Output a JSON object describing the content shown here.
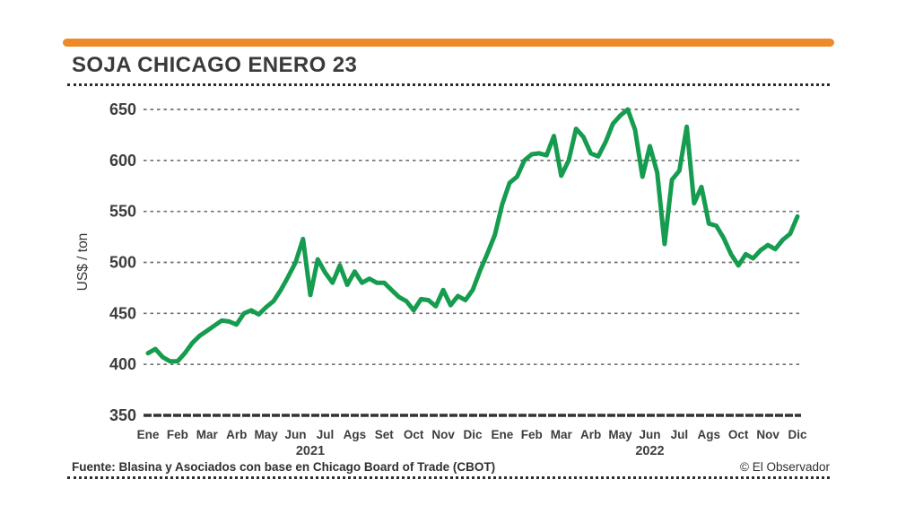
{
  "page": {
    "title": "SOJA CHICAGO ENERO 23",
    "accent_bar_color": "#ef8a2a"
  },
  "footer": {
    "source": "Fuente: Blasina y Asociados con base en Chicago Board of Trade (CBOT)",
    "credit": "© El Observador"
  },
  "chart_data": {
    "type": "line",
    "title": "SOJA CHICAGO ENERO 23",
    "xlabel": "",
    "ylabel": "US$ / ton",
    "ylim": [
      350,
      650
    ],
    "y_ticks": [
      350,
      400,
      450,
      500,
      550,
      600,
      650
    ],
    "grid": "dashed horizontal",
    "legend": "none",
    "line_color": "#169c4f",
    "grid_color": "#6f6f6f",
    "axis_color": "#333333",
    "text_color": "#3d3d3d",
    "x_labels": [
      "Ene",
      "Feb",
      "Mar",
      "Arb",
      "May",
      "Jun",
      "Jul",
      "Ags",
      "Set",
      "Oct",
      "Nov",
      "Dic",
      "Ene",
      "Feb",
      "Mar",
      "Arb",
      "May",
      "Jun",
      "Jul",
      "Ags",
      "Oct",
      "Nov",
      "Dic"
    ],
    "year_labels": [
      {
        "text": "2021",
        "from_label": 0,
        "to_label": 11
      },
      {
        "text": "2022",
        "from_label": 12,
        "to_label": 22
      }
    ],
    "points_per_label_slot": 4,
    "values": [
      411,
      415,
      407,
      403,
      403,
      411,
      421,
      428,
      433,
      438,
      443,
      442,
      439,
      450,
      453,
      449,
      456,
      462,
      473,
      486,
      500,
      523,
      468,
      503,
      490,
      480,
      497,
      478,
      491,
      480,
      484,
      480,
      480,
      473,
      466,
      462,
      453,
      464,
      463,
      457,
      473,
      458,
      467,
      463,
      473,
      492,
      509,
      527,
      557,
      578,
      584,
      600,
      606,
      607,
      605,
      624,
      585,
      600,
      631,
      623,
      607,
      604,
      618,
      636,
      644,
      650,
      630,
      584,
      614,
      588,
      518,
      581,
      590,
      633,
      558,
      574,
      538,
      536,
      524,
      508,
      497,
      508,
      504,
      512,
      517,
      513,
      522,
      528,
      545
    ]
  }
}
